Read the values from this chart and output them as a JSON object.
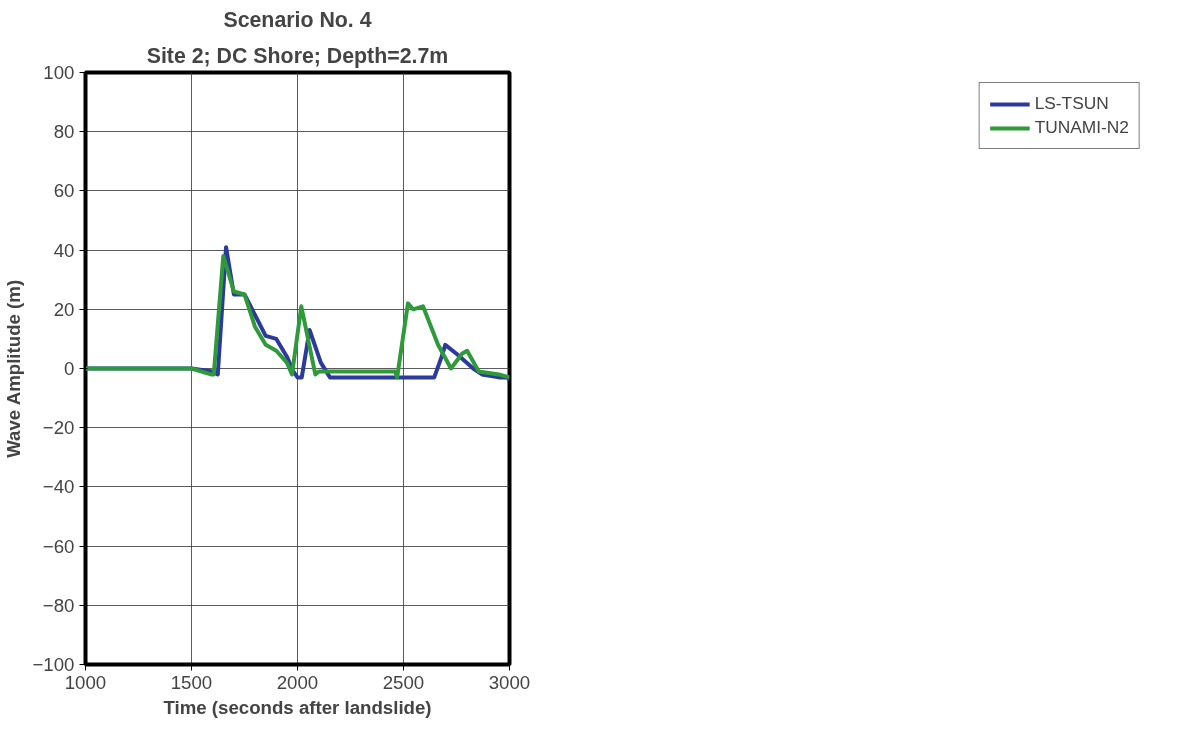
{
  "chart_data": {
    "type": "line",
    "title": "Scenario No. 4",
    "subtitle": "Site 2; DC Shore; Depth=2.7m",
    "xlabel": "Time (seconds after landslide)",
    "ylabel": "Wave Amplitude (m)",
    "xlim": [
      1000,
      3000
    ],
    "xticks": [
      1000,
      1500,
      2000,
      2500,
      3000
    ],
    "ylim": [
      -100,
      100
    ],
    "yticks": [
      -100,
      -80,
      -60,
      -40,
      -20,
      0,
      20,
      40,
      60,
      80,
      100
    ],
    "grid": true,
    "legend": "right",
    "marker": "none",
    "line_style": "solid",
    "series": [
      {
        "name": "LS-TSUN",
        "color": "#2b3a9c",
        "x": [
          1000,
          1500,
          1600,
          1624,
          1663,
          1700,
          1750,
          1800,
          1850,
          1900,
          1950,
          1980,
          2000,
          2020,
          2057,
          2110,
          2153,
          2645,
          2680,
          2697,
          2750,
          2829,
          2870,
          2950,
          2990,
          3000
        ],
        "values": [
          0,
          0,
          -1,
          -2,
          41,
          25,
          25,
          18,
          11,
          10,
          4,
          -1,
          -3,
          -3,
          13,
          2,
          -3,
          -3,
          4,
          8,
          5,
          0,
          -2,
          -3,
          -3,
          -4
        ]
      },
      {
        "name": "TUNAMI-N2",
        "color": "#2e9a3a",
        "x": [
          1000,
          1500,
          1592,
          1605,
          1650,
          1700,
          1750,
          1800,
          1850,
          1900,
          1950,
          1974,
          2018,
          2084,
          2100,
          2460,
          2470,
          2521,
          2545,
          2592,
          2663,
          2724,
          2776,
          2800,
          2855,
          2950,
          3000
        ],
        "values": [
          0,
          0,
          -2,
          -2,
          38,
          26,
          25,
          14,
          8,
          6,
          2,
          -2,
          21,
          -2,
          -1,
          -1,
          -3,
          22,
          20,
          21,
          8,
          0,
          5,
          6,
          -1,
          -2,
          -3
        ]
      }
    ]
  }
}
